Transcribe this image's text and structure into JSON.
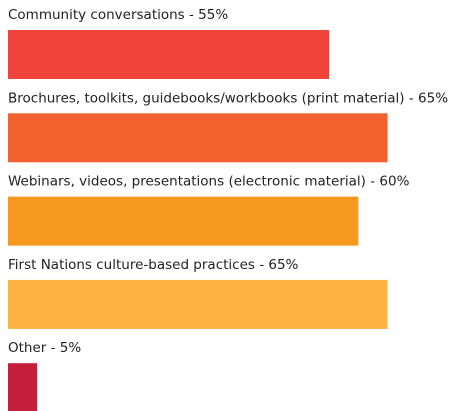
{
  "chart_data": {
    "type": "bar",
    "orientation": "horizontal",
    "categories": [
      "Community conversations - 55%",
      "Brochures, toolkits, guidebooks/workbooks (print material) - 65%",
      "Webinars, videos, presentations (electronic material) - 60%",
      "First Nations culture-based practices - 65%",
      "Other - 5%"
    ],
    "values": [
      55,
      65,
      60,
      65,
      5
    ],
    "colors": [
      "#f2433a",
      "#f2612e",
      "#f7981e",
      "#fdb240",
      "#c41e3a"
    ]
  }
}
